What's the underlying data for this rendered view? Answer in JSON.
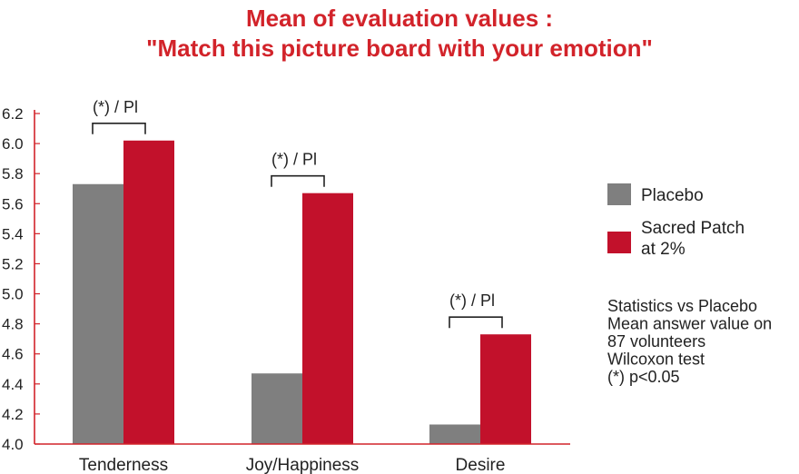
{
  "title_line1": "Mean of evaluation values :",
  "title_line2": "\"Match this picture board with your emotion\"",
  "chart_data": {
    "type": "bar",
    "title": "Mean of evaluation values : \"Match this picture board with your emotion\"",
    "categories": [
      "Tenderness",
      "Joy/Happiness",
      "Desire"
    ],
    "series": [
      {
        "name": "Placebo",
        "color": "#7f7f7f",
        "values": [
          5.73,
          4.47,
          4.13
        ]
      },
      {
        "name": "Sacred Patch at 2%",
        "color": "#c2112b",
        "values": [
          6.02,
          5.67,
          4.73
        ]
      }
    ],
    "ylim": [
      4.0,
      6.2
    ],
    "yticks": [
      "4.0",
      "4.2",
      "4.4",
      "4.6",
      "4.8",
      "5.0",
      "5.2",
      "5.4",
      "5.6",
      "5.8",
      "6.0",
      "6.2"
    ],
    "significance_label": "(*)  / Pl",
    "legend": {
      "position": "right",
      "items": [
        {
          "lines": [
            "Placebo"
          ],
          "color": "#7f7f7f"
        },
        {
          "lines": [
            "Sacred Patch",
            "at 2%"
          ],
          "color": "#c2112b"
        }
      ]
    },
    "axis_color": "#d2232a",
    "notes": [
      "Statistics vs Placebo",
      "Mean answer value on",
      "87 volunteers",
      "Wilcoxon test",
      "(*) p<0.05"
    ]
  }
}
